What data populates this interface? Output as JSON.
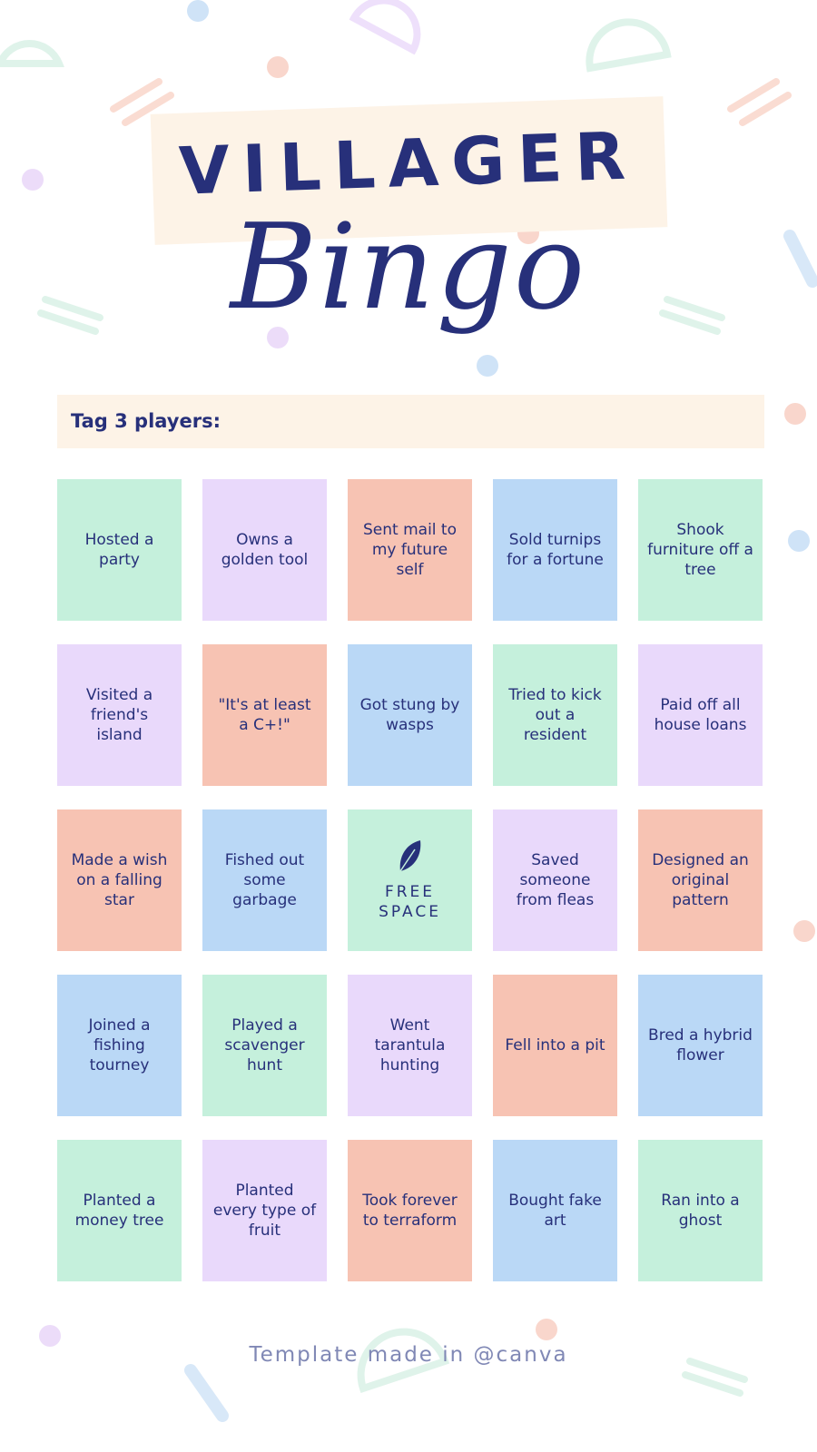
{
  "header": {
    "title": "VILLAGER",
    "subtitle": "Bingo"
  },
  "tag": "Tag 3 players:",
  "grid": {
    "rows": [
      [
        "Hosted a party",
        "Owns a golden tool",
        "Sent mail to my future self",
        "Sold turnips for a fortune",
        "Shook furniture off a tree"
      ],
      [
        "Visited a friend's island",
        "\"It's at least a C+!\"",
        "Got stung by wasps",
        "Tried to kick out a resident",
        "Paid off all house loans"
      ],
      [
        "Made a wish on a falling star",
        "Fished out some garbage",
        "FREE SPACE",
        "Saved someone from fleas",
        "Designed an original pattern"
      ],
      [
        "Joined a fishing tourney",
        "Played a scavenger hunt",
        "Went tarantula hunting",
        "Fell into a pit",
        "Bred a hybrid flower"
      ],
      [
        "Planted a money tree",
        "Planted every type of fruit",
        "Took forever to terraform",
        "Bought fake art",
        "Ran into a ghost"
      ]
    ]
  },
  "footer": "Template made in @canva"
}
